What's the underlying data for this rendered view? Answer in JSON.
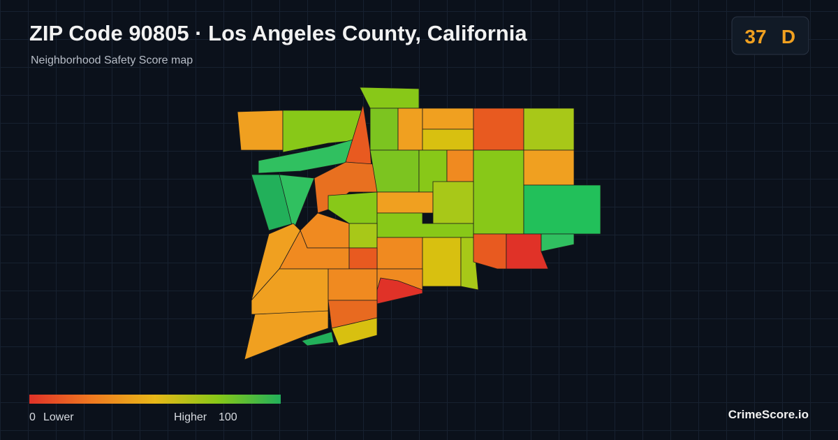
{
  "header": {
    "title": "ZIP Code 90805 · Los Angeles County, California",
    "subtitle": "Neighborhood Safety Score map"
  },
  "score": {
    "value": 37,
    "grade": "D"
  },
  "legend": {
    "min": 0,
    "min_label": "Lower",
    "max_label": "Higher",
    "max": 100
  },
  "brand": "CrimeScore.io"
}
